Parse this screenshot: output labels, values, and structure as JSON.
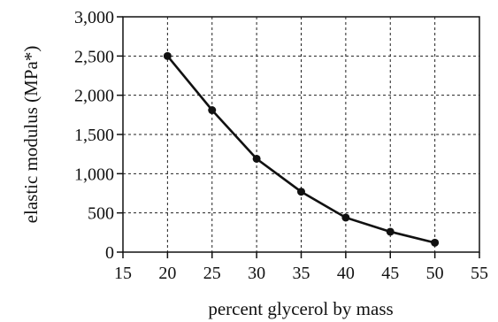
{
  "chart_data": {
    "type": "line",
    "title": "",
    "xlabel": "percent glycerol by mass",
    "ylabel": "elastic modulus (MPa*)",
    "xlim": [
      15,
      55
    ],
    "ylim": [
      0,
      3000
    ],
    "x_ticks": [
      "15",
      "20",
      "25",
      "30",
      "35",
      "40",
      "45",
      "50",
      "55"
    ],
    "y_ticks": [
      "0",
      "500",
      "1,000",
      "1,500",
      "2,000",
      "2,500",
      "3,000"
    ],
    "grid": true,
    "series": [
      {
        "x": [
          20,
          25,
          30,
          35,
          40,
          45,
          50
        ],
        "values": [
          2500,
          1810,
          1190,
          770,
          440,
          260,
          120
        ]
      }
    ]
  }
}
